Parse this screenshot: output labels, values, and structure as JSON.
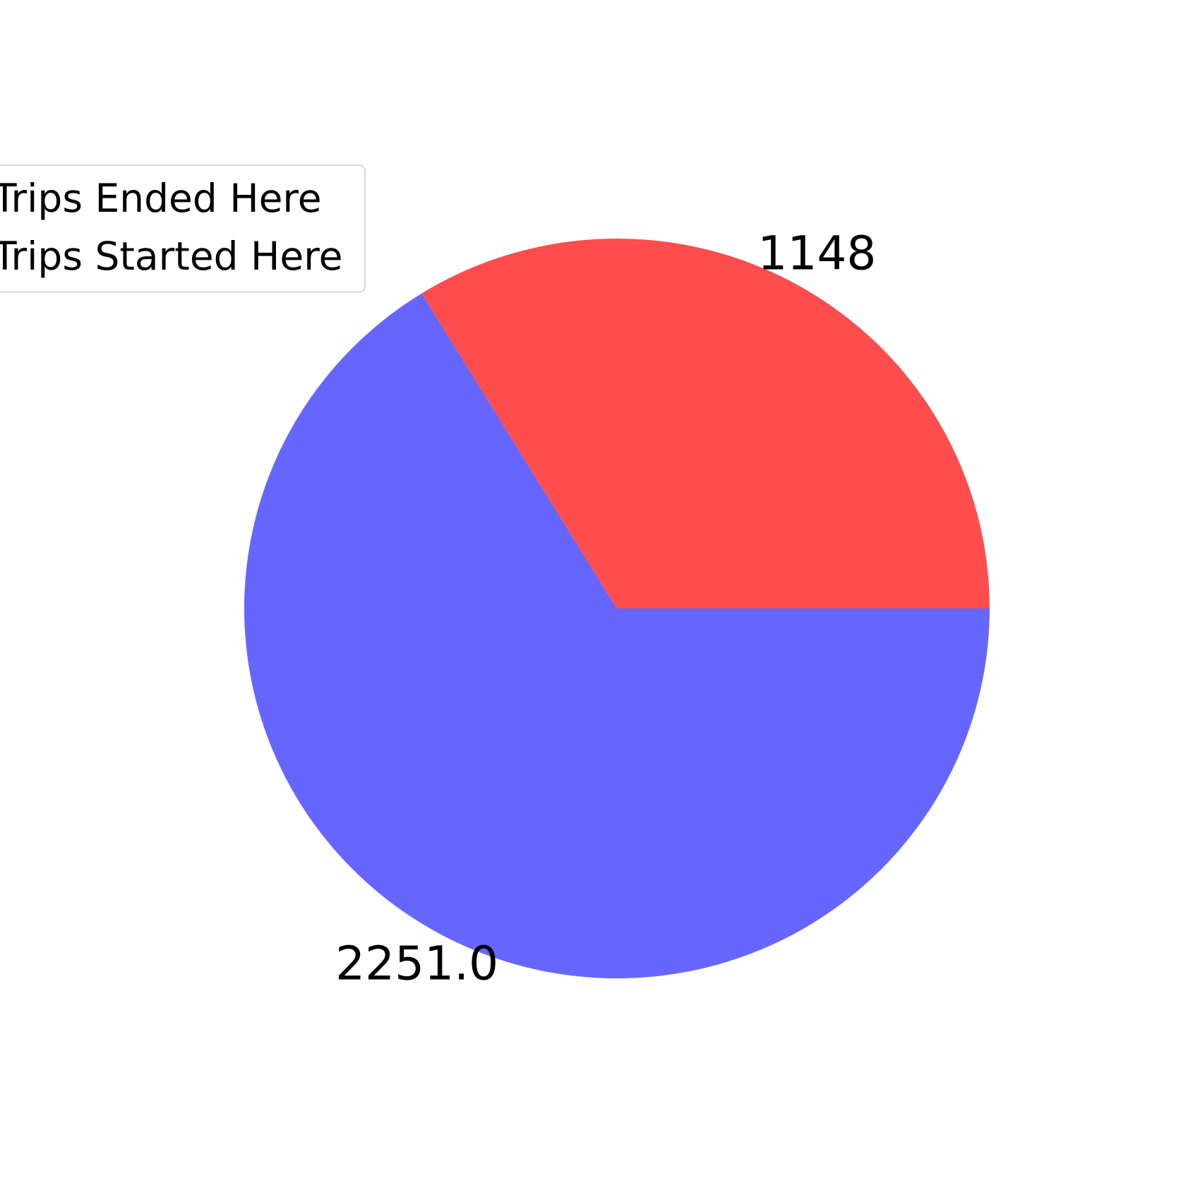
{
  "chart_data": {
    "type": "pie",
    "slices": [
      {
        "label": "Trips Ended Here",
        "value": 1148,
        "value_label": "1148",
        "color": "#ff4d4d"
      },
      {
        "label": "Trips Started Here",
        "value": 2251.0,
        "value_label": "2251.0",
        "color": "#6666ff"
      }
    ],
    "start_angle_deg": 0,
    "direction": "counterclockwise",
    "legend_position": "upper-left"
  }
}
